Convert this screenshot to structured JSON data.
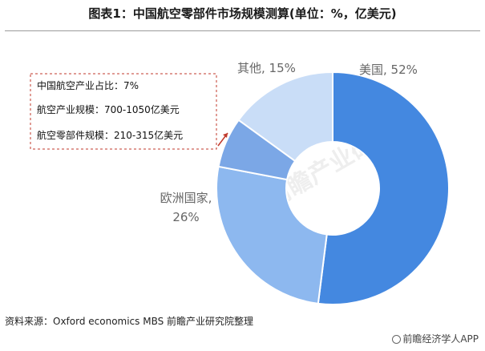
{
  "title": "图表1：中国航空零部件市场规模测算(单位：%，亿美元)",
  "source": "资料来源：Oxford economics MBS 前瞻产业研究院整理",
  "brand": "前瞻经济学人APP",
  "watermark": "前瞻产业研究院",
  "annotation": {
    "lines": [
      "中国航空产业占比：7%",
      "航空产业规模：700-1050亿美元",
      "航空零部件规模：210-315亿美元"
    ]
  },
  "chart_data": {
    "type": "pie",
    "variant": "donut",
    "start_angle_deg": 0,
    "direction": "clockwise",
    "slices": [
      {
        "category": "美国",
        "percent_label": "52%",
        "value": 52,
        "color": "#4488e0"
      },
      {
        "category": "欧洲国家",
        "percent_label": "26%",
        "value": 26,
        "color": "#8db8ef"
      },
      {
        "category": "中国",
        "percent_label": "",
        "value": 7,
        "color": "#7ba7e6"
      },
      {
        "category": "其他",
        "percent_label": "15%",
        "value": 15,
        "color": "#c9ddf7"
      }
    ]
  }
}
